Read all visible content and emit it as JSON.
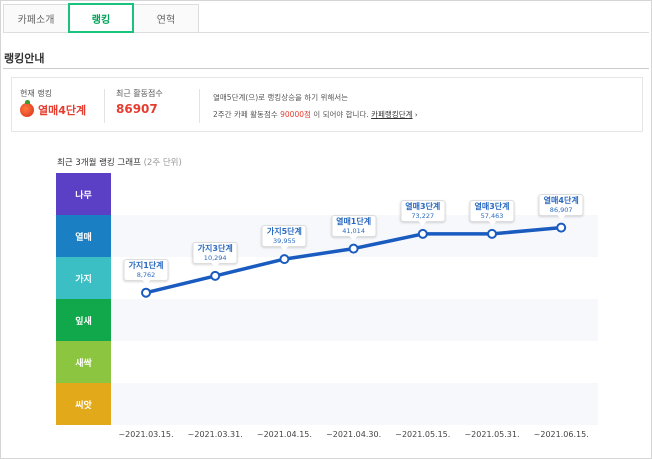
{
  "tabs": [
    {
      "label": "카페소개",
      "active": false
    },
    {
      "label": "랭킹",
      "active": true
    },
    {
      "label": "연혁",
      "active": false
    }
  ],
  "section_title": "랭킹안내",
  "info": {
    "rank_label": "현재 랭킹",
    "rank_value": "열매4단계",
    "score_label": "최근 활동점수",
    "score_value": "86907",
    "notice_line1": "열매5단계(으)로 랭킹상승을 하기 위해서는",
    "notice_line2_pre": "2주간 카페 활동점수 ",
    "notice_line2_highlight": "90000점",
    "notice_line2_post": "이 되어야 합니다.",
    "notice_link": "카페랭킹단계",
    "notice_arrow": "›"
  },
  "chart_title": "최근 3개월 랭킹 그래프",
  "chart_subtitle": "(2주 단위)",
  "chart_data": {
    "type": "line",
    "title": "최근 3개월 랭킹 그래프",
    "subtitle": "(2주 단위)",
    "levels": [
      "나무",
      "열매",
      "가지",
      "잎새",
      "새싹",
      "씨앗"
    ],
    "level_colors": [
      "#5b3fc5",
      "#1b7fc4",
      "#3bbfc4",
      "#10a84a",
      "#8cc53f",
      "#e2a91a"
    ],
    "line_color": "#1a5bbf",
    "x": [
      "~2021.03.15.",
      "~2021.03.31.",
      "~2021.04.15.",
      "~2021.04.30.",
      "~2021.05.15.",
      "~2021.05.31.",
      "~2021.06.15."
    ],
    "points": [
      {
        "level": "가지1단계",
        "score": "8,762",
        "pos": 0.15
      },
      {
        "level": "가지3단계",
        "score": "10,294",
        "pos": 0.55
      },
      {
        "level": "가지5단계",
        "score": "39,955",
        "pos": 0.95
      },
      {
        "level": "열매1단계",
        "score": "41,014",
        "pos": 1.2
      },
      {
        "level": "열매3단계",
        "score": "73,227",
        "pos": 1.55
      },
      {
        "level": "열매3단계",
        "score": "57,463",
        "pos": 1.55
      },
      {
        "level": "열매4단계",
        "score": "86,907",
        "pos": 1.7
      }
    ]
  }
}
